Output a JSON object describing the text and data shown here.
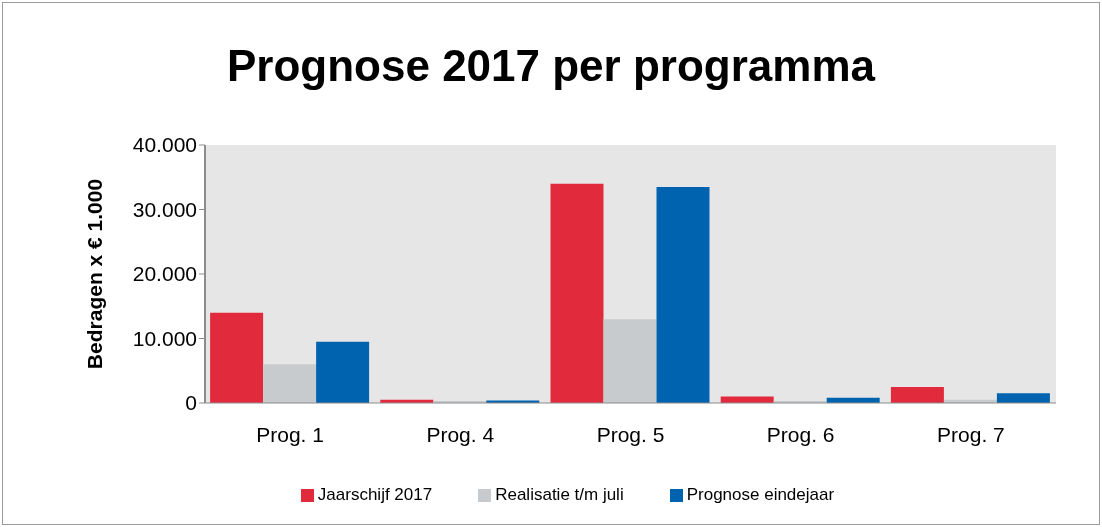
{
  "chart_data": {
    "type": "bar",
    "title": "Prognose 2017 per programma",
    "ylabel": "Bedragen x € 1.000",
    "categories": [
      "Prog. 1",
      "Prog. 4",
      "Prog. 5",
      "Prog. 6",
      "Prog. 7"
    ],
    "series": [
      {
        "name": "Jaarschijf 2017",
        "color": "#e12a3c",
        "values": [
          14000,
          500,
          34000,
          1000,
          2500
        ]
      },
      {
        "name": "Realisatie t/m juli",
        "color": "#c8cbcd",
        "values": [
          6000,
          300,
          13000,
          300,
          500
        ]
      },
      {
        "name": "Prognose eindejaar",
        "color": "#0063b0",
        "values": [
          9500,
          400,
          33500,
          800,
          1500
        ]
      }
    ],
    "ylim": [
      0,
      40000
    ],
    "yticks": [
      0,
      {
        "value": 10000,
        "label": "10.000"
      },
      {
        "value": 20000,
        "label": "20.000"
      },
      {
        "value": 30000,
        "label": "30.000"
      },
      {
        "value": 40000,
        "label": "40.000"
      }
    ],
    "grid": false,
    "legend": "bottom"
  }
}
